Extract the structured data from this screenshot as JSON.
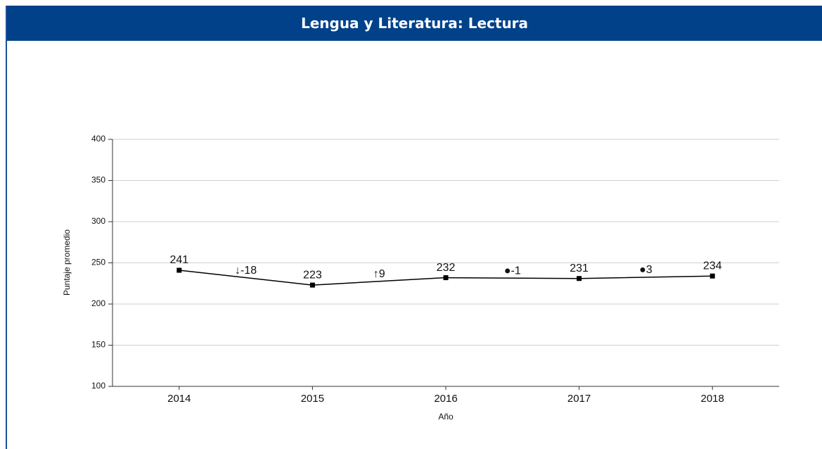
{
  "chart_data": {
    "type": "line",
    "title": "Lengua y Literatura: Lectura",
    "categories": [
      "2014",
      "2015",
      "2016",
      "2017",
      "2018"
    ],
    "values": [
      241,
      223,
      232,
      231,
      234
    ],
    "color": "#000000",
    "annotations": [
      "↓-18",
      "↑9",
      "●-1",
      "●3"
    ],
    "ylim": [
      100,
      400
    ],
    "yticks": [
      100,
      150,
      200,
      250,
      300,
      350,
      400
    ],
    "grid": true,
    "xlabel": "Año",
    "ylabel": "Puntaje promedio"
  }
}
